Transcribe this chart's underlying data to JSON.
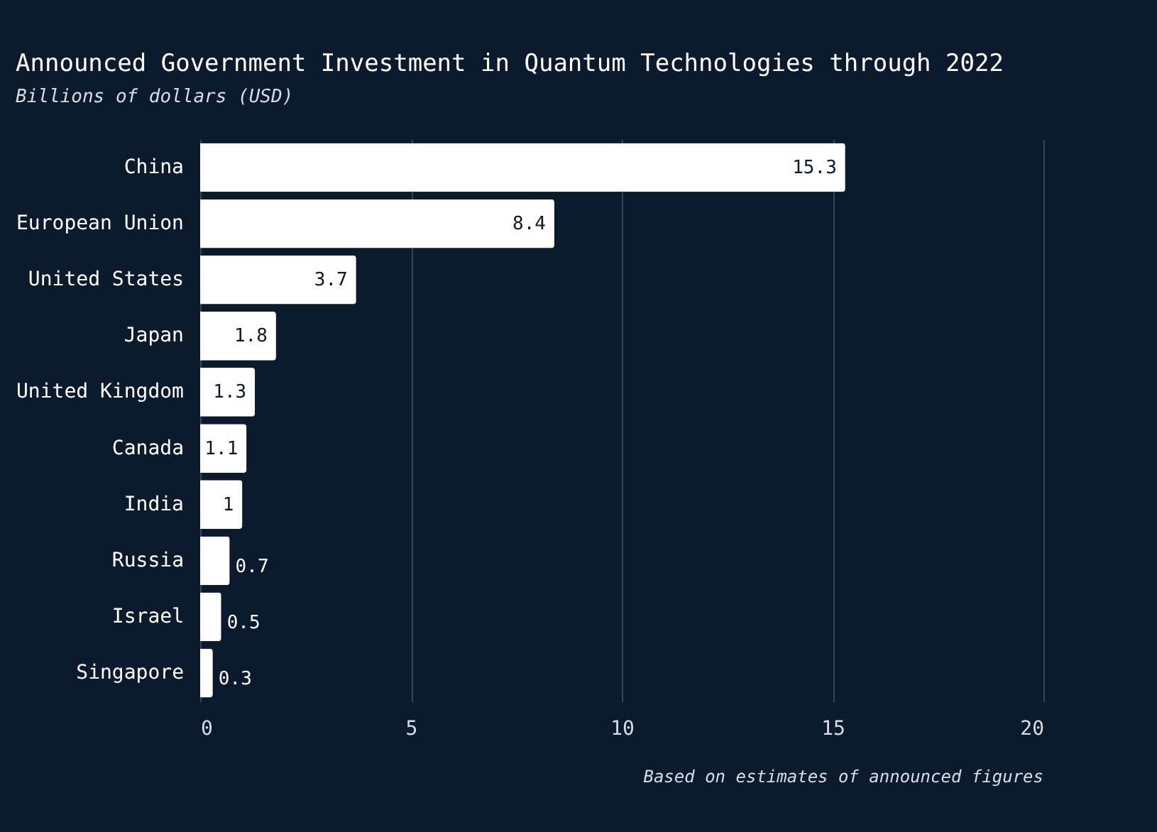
{
  "chart_data": {
    "type": "bar",
    "orientation": "horizontal",
    "title": "Announced Government Investment in Quantum Technologies through 2022",
    "subtitle": "Billions of dollars (USD)",
    "categories": [
      "China",
      "European Union",
      "United States",
      "Japan",
      "United Kingdom",
      "Canada",
      "India",
      "Russia",
      "Israel",
      "Singapore"
    ],
    "values": [
      15.3,
      8.4,
      3.7,
      1.8,
      1.3,
      1.1,
      1,
      0.7,
      0.5,
      0.3
    ],
    "color": "#ffffff",
    "xlim": [
      0,
      20
    ],
    "xticks": [
      0,
      5,
      10,
      15,
      20
    ],
    "grid": "x",
    "data_labels": true,
    "annotations": [
      "Based on estimates of announced figures"
    ]
  }
}
